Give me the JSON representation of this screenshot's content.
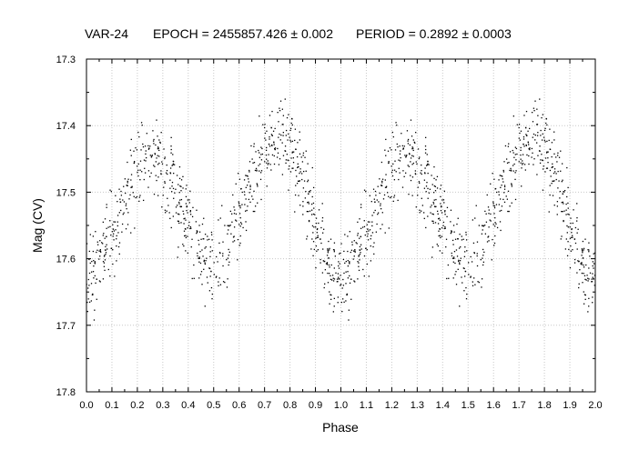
{
  "chart_data": {
    "type": "scatter",
    "title_parts": {
      "object": "VAR-24",
      "epoch": "EPOCH = 2455857.426 ± 0.002",
      "period": "PERIOD = 0.2892 ± 0.0003"
    },
    "xlabel": "Phase",
    "ylabel": "Mag (CV)",
    "xlim": [
      0.0,
      2.0
    ],
    "ylim": [
      17.3,
      17.8
    ],
    "y_inverted": true,
    "grid": true,
    "x_ticks": [
      "0.0",
      "0.1",
      "0.2",
      "0.3",
      "0.4",
      "0.5",
      "0.6",
      "0.7",
      "0.8",
      "0.9",
      "1.0",
      "1.1",
      "1.2",
      "1.3",
      "1.4",
      "1.5",
      "1.6",
      "1.7",
      "1.8",
      "1.9",
      "2.0"
    ],
    "y_ticks": [
      "17.3",
      "17.4",
      "17.5",
      "17.6",
      "17.7",
      "17.8"
    ],
    "series": [
      {
        "marker_color": "#000000",
        "repeat_period": 1.0,
        "light_curve_profile": {
          "phase": [
            0.0,
            0.05,
            0.1,
            0.15,
            0.2,
            0.25,
            0.3,
            0.35,
            0.4,
            0.45,
            0.5,
            0.55,
            0.6,
            0.65,
            0.7,
            0.75,
            0.8,
            0.85,
            0.9,
            0.95,
            1.0
          ],
          "mag": [
            17.64,
            17.6,
            17.56,
            17.51,
            17.47,
            17.44,
            17.46,
            17.5,
            17.55,
            17.59,
            17.61,
            17.58,
            17.53,
            17.48,
            17.44,
            17.42,
            17.43,
            17.48,
            17.55,
            17.61,
            17.64
          ]
        }
      }
    ]
  }
}
